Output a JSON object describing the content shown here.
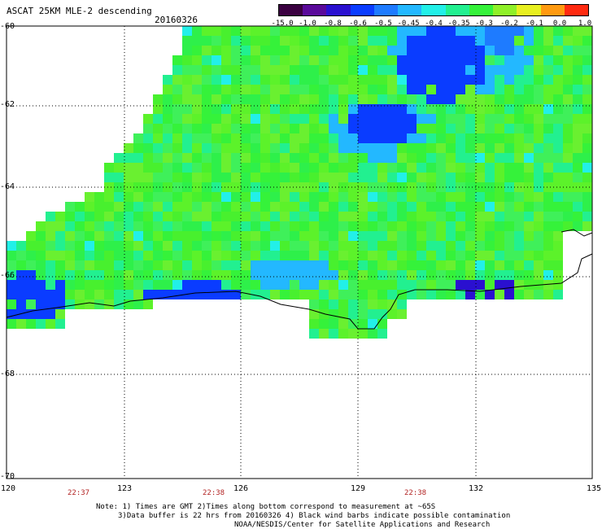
{
  "header": {
    "title": "ASCAT 25KM MLE-2 descending",
    "date": "20160326"
  },
  "colorbar": {
    "labels": [
      "-15.0",
      "-1.0",
      "-0.8",
      "-0.6",
      "-0.5",
      "-0.45",
      "-0.4",
      "-0.35",
      "-0.3",
      "-0.2",
      "-0.1",
      "0.0",
      "1.0"
    ],
    "colors": [
      "#3a0040",
      "#5a0a9a",
      "#2a10d0",
      "#0a3cff",
      "#1e7bff",
      "#23b8ff",
      "#22f0e8",
      "#22f090",
      "#35f23a",
      "#8ff028",
      "#e8f020",
      "#ff9a10",
      "#ff2a10"
    ]
  },
  "axes": {
    "lat_labels": [
      "-60",
      "-62",
      "-64",
      "-66",
      "-68",
      "-70"
    ],
    "lon_labels": [
      "120",
      "123",
      "126",
      "129",
      "132",
      "135"
    ]
  },
  "times": [
    "22:37",
    "22:38",
    "22:38"
  ],
  "notes": [
    "Note: 1) Times are GMT 2)Times along bottom correspond to measurement at ~65S",
    "3)Data buffer is 22 hrs from 20160326 4) Black wind barbs indicate possible contamination",
    "NOAA/NESDIS/Center for Satellite Applications and Research"
  ]
}
